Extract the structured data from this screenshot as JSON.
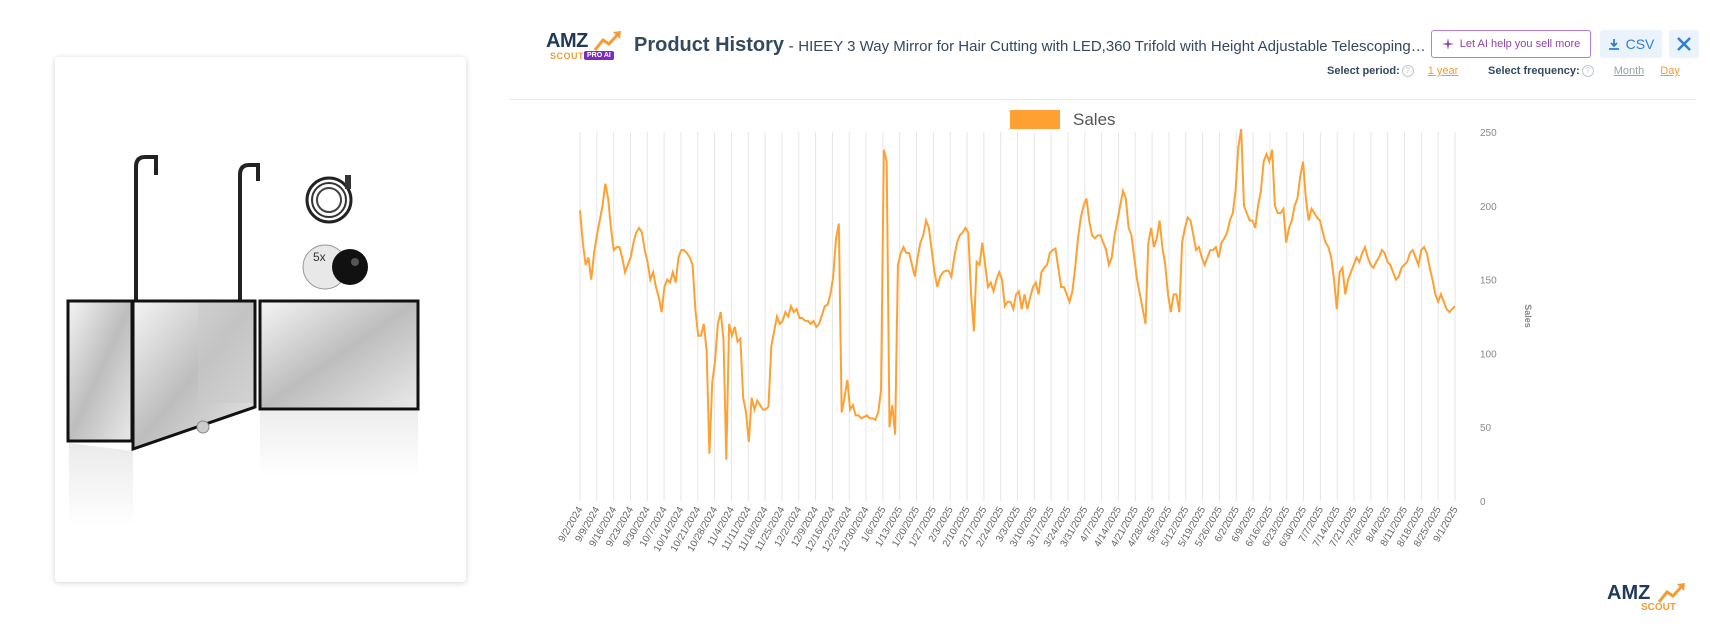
{
  "header": {
    "logo": {
      "brand": "AMZ",
      "sub": "SCOUT",
      "badge": "PRO AI"
    },
    "title": "Product History",
    "separator": " - ",
    "product_title": "HIEEY 3 Way Mirror for Hair Cutting with LED,360 Trifold with Height Adjustable Telescoping…",
    "ai_button_label": "Let AI help you sell more",
    "csv_button_label": "CSV",
    "period_label": "Select period:",
    "period_value": "1 year",
    "frequency_label": "Select frequency:",
    "frequency_options": [
      "Month",
      "Day"
    ],
    "frequency_selected": "Day",
    "help_glyph": "?"
  },
  "product_image": {
    "magnifier_label": "5x"
  },
  "watermark": {
    "brand": "AMZ",
    "sub": "SCOUT"
  },
  "icons": [
    "sparkle-icon",
    "download-icon",
    "close-icon",
    "help-icon"
  ],
  "colors": {
    "accent": "#f39c34",
    "ai_purple": "#8e44ad",
    "csv_blue": "#2d7fd3",
    "line": "#ffa033"
  },
  "chart_data": {
    "type": "line",
    "legend": "Sales",
    "legend_position": "top-center",
    "ylabel": "Sales",
    "yaxis_position": "right",
    "ylim": [
      0,
      250
    ],
    "yticks": [
      0,
      50,
      100,
      150,
      200,
      250
    ],
    "grid": "vertical",
    "x_start": "9/2/2024",
    "x_end": "9/3/2025",
    "xticks": [
      "9/2/2024",
      "9/9/2024",
      "9/16/2024",
      "9/23/2024",
      "9/30/2024",
      "10/7/2024",
      "10/14/2024",
      "10/21/2024",
      "10/28/2024",
      "11/4/2024",
      "11/11/2024",
      "11/18/2024",
      "11/25/2024",
      "12/2/2024",
      "12/9/2024",
      "12/16/2024",
      "12/23/2024",
      "12/30/2024",
      "1/6/2025",
      "1/13/2025",
      "1/20/2025",
      "1/27/2025",
      "2/3/2025",
      "2/10/2025",
      "2/17/2025",
      "2/24/2025",
      "3/3/2025",
      "3/10/2025",
      "3/17/2025",
      "3/24/2025",
      "3/31/2025",
      "4/7/2025",
      "4/14/2025",
      "4/21/2025",
      "4/28/2025",
      "5/5/2025",
      "5/12/2025",
      "5/19/2025",
      "5/26/2025",
      "6/2/2025",
      "6/9/2025",
      "6/16/2025",
      "6/23/2025",
      "6/30/2025",
      "7/7/2025",
      "7/14/2025",
      "7/21/2025",
      "7/28/2025",
      "8/4/2025",
      "8/11/2025",
      "8/18/2025",
      "8/25/2025",
      "9/1/2025"
    ],
    "series": [
      {
        "name": "Sales",
        "values": [
          197,
          175,
          160,
          165,
          150,
          168,
          180,
          190,
          200,
          215,
          205,
          185,
          170,
          172,
          172,
          165,
          155,
          160,
          165,
          175,
          182,
          185,
          182,
          170,
          162,
          150,
          155,
          145,
          138,
          128,
          145,
          150,
          148,
          155,
          148,
          165,
          170,
          170,
          168,
          165,
          160,
          130,
          112,
          112,
          120,
          102,
          32,
          80,
          95,
          120,
          128,
          110,
          28,
          120,
          112,
          118,
          108,
          110,
          70,
          60,
          40,
          70,
          62,
          68,
          65,
          62,
          62,
          64,
          105,
          115,
          125,
          120,
          122,
          128,
          125,
          132,
          128,
          130,
          124,
          124,
          122,
          122,
          120,
          122,
          118,
          120,
          126,
          132,
          133,
          140,
          152,
          178,
          188,
          60,
          70,
          82,
          62,
          65,
          58,
          58,
          56,
          57,
          58,
          56,
          56,
          55,
          60,
          75,
          238,
          230,
          50,
          65,
          45,
          160,
          168,
          172,
          168,
          168,
          160,
          152,
          165,
          175,
          180,
          190,
          185,
          170,
          155,
          145,
          152,
          155,
          156,
          156,
          152,
          165,
          175,
          180,
          182,
          185,
          182,
          140,
          115,
          162,
          160,
          175,
          160,
          145,
          148,
          142,
          150,
          155,
          150,
          132,
          135,
          135,
          130,
          140,
          142,
          130,
          140,
          130,
          138,
          145,
          148,
          140,
          155,
          158,
          160,
          168,
          170,
          171,
          158,
          145,
          145,
          140,
          135,
          142,
          158,
          178,
          192,
          200,
          205,
          190,
          180,
          178,
          180,
          180,
          175,
          170,
          160,
          165,
          180,
          190,
          200,
          210,
          205,
          185,
          180,
          165,
          150,
          140,
          130,
          120,
          175,
          185,
          172,
          178,
          190,
          172,
          160,
          140,
          128,
          140,
          140,
          128,
          175,
          185,
          192,
          190,
          180,
          170,
          172,
          165,
          160,
          165,
          170,
          170,
          172,
          165,
          175,
          178,
          182,
          190,
          195,
          210,
          240,
          252,
          200,
          195,
          190,
          190,
          185,
          200,
          210,
          230,
          235,
          230,
          238,
          200,
          195,
          195,
          198,
          175,
          185,
          190,
          200,
          205,
          220,
          230,
          205,
          190,
          198,
          195,
          192,
          190,
          182,
          175,
          172,
          165,
          150,
          130,
          155,
          158,
          140,
          150,
          155,
          160,
          165,
          162,
          168,
          172,
          165,
          160,
          158,
          162,
          165,
          170,
          168,
          162,
          160,
          155,
          150,
          152,
          158,
          160,
          162,
          168,
          170,
          165,
          160,
          170,
          172,
          168,
          158,
          150,
          140,
          135,
          140,
          135,
          130,
          128,
          130,
          132
        ]
      }
    ]
  }
}
